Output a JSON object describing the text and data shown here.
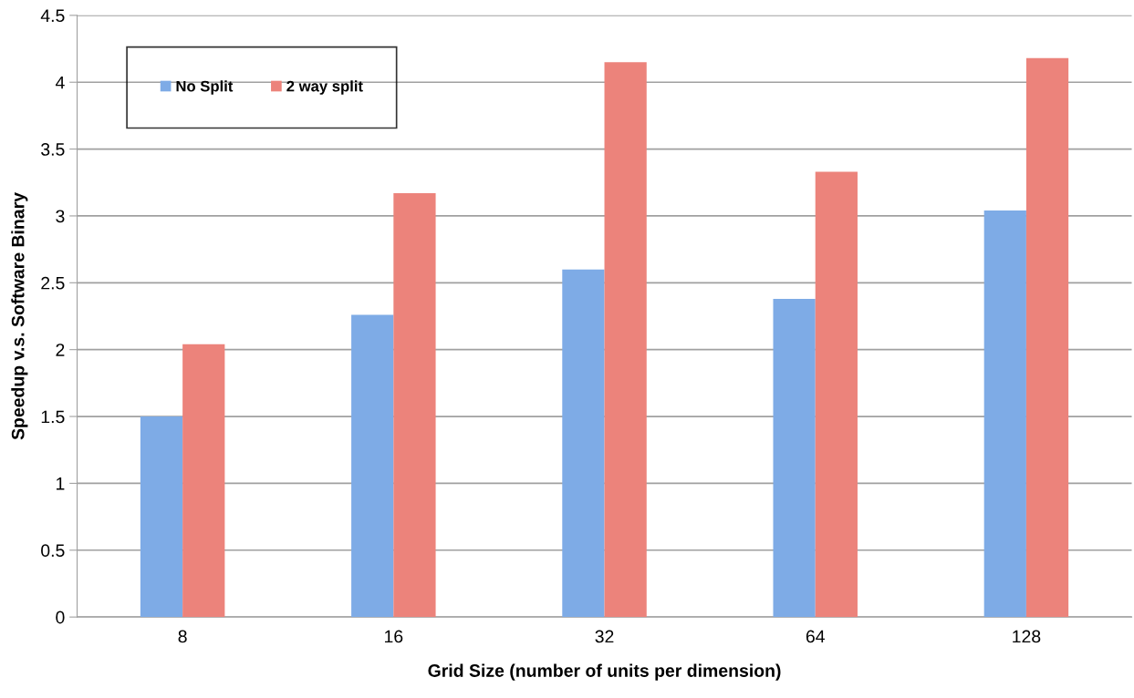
{
  "chart_data": {
    "type": "bar",
    "xlabel": "Grid Size (number of units per dimension)",
    "ylabel": "Speedup v.s. Software Binary",
    "categories": [
      "8",
      "16",
      "32",
      "64",
      "128"
    ],
    "series": [
      {
        "name": "No Split",
        "color": "#7eabe6",
        "values": [
          1.5,
          2.26,
          2.6,
          2.38,
          3.04
        ]
      },
      {
        "name": "2 way split",
        "color": "#ec837b",
        "values": [
          2.04,
          3.17,
          4.15,
          3.33,
          4.18
        ]
      }
    ],
    "ylim": [
      0,
      4.5
    ],
    "yticks": [
      0,
      0.5,
      1,
      1.5,
      2,
      2.5,
      3,
      3.5,
      4,
      4.5
    ],
    "grid": "y",
    "legend": "top left"
  }
}
